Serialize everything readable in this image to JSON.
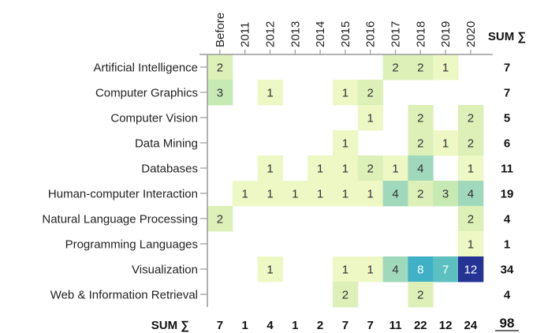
{
  "chart_data": {
    "type": "heatmap",
    "columns": [
      "Before",
      "2011",
      "2012",
      "2013",
      "2014",
      "2015",
      "2016",
      "2017",
      "2018",
      "2019",
      "2020"
    ],
    "rows": [
      "Artificial Intelligence",
      "Computer Graphics",
      "Computer Vision",
      "Data Mining",
      "Databases",
      "Human-computer Interaction",
      "Natural Language Processing",
      "Programming Languages",
      "Visualization",
      "Web & Information Retrieval"
    ],
    "values": [
      [
        2,
        0,
        0,
        0,
        0,
        0,
        0,
        2,
        2,
        1,
        0
      ],
      [
        3,
        0,
        1,
        0,
        0,
        1,
        2,
        0,
        0,
        0,
        0
      ],
      [
        0,
        0,
        0,
        0,
        0,
        0,
        1,
        0,
        2,
        0,
        2
      ],
      [
        0,
        0,
        0,
        0,
        0,
        1,
        0,
        0,
        2,
        1,
        2
      ],
      [
        0,
        0,
        1,
        0,
        1,
        1,
        2,
        1,
        4,
        0,
        1
      ],
      [
        0,
        1,
        1,
        1,
        1,
        1,
        1,
        4,
        2,
        3,
        4
      ],
      [
        2,
        0,
        0,
        0,
        0,
        0,
        0,
        0,
        0,
        0,
        2
      ],
      [
        0,
        0,
        0,
        0,
        0,
        0,
        0,
        0,
        0,
        0,
        1
      ],
      [
        0,
        0,
        1,
        0,
        0,
        1,
        1,
        4,
        8,
        7,
        12
      ],
      [
        0,
        0,
        0,
        0,
        0,
        2,
        0,
        0,
        2,
        0,
        0
      ]
    ],
    "row_sums": [
      "7",
      "7",
      "5",
      "6",
      "11",
      "19",
      "4",
      "1",
      "34",
      "4"
    ],
    "col_sums": [
      "7",
      "1",
      "4",
      "1",
      "2",
      "7",
      "7",
      "11",
      "22",
      "12",
      "24"
    ],
    "total": "98",
    "sum_label": "SUM ∑",
    "color_scale": [
      "#edf8c4",
      "#dcf0b8",
      "#c7e9b4",
      "#a0d8bc",
      "#7fcdbb",
      "#5cc0c0",
      "#3fb0c6",
      "#2c8fc0",
      "#2270b0",
      "#2456a0",
      "#253494"
    ]
  }
}
